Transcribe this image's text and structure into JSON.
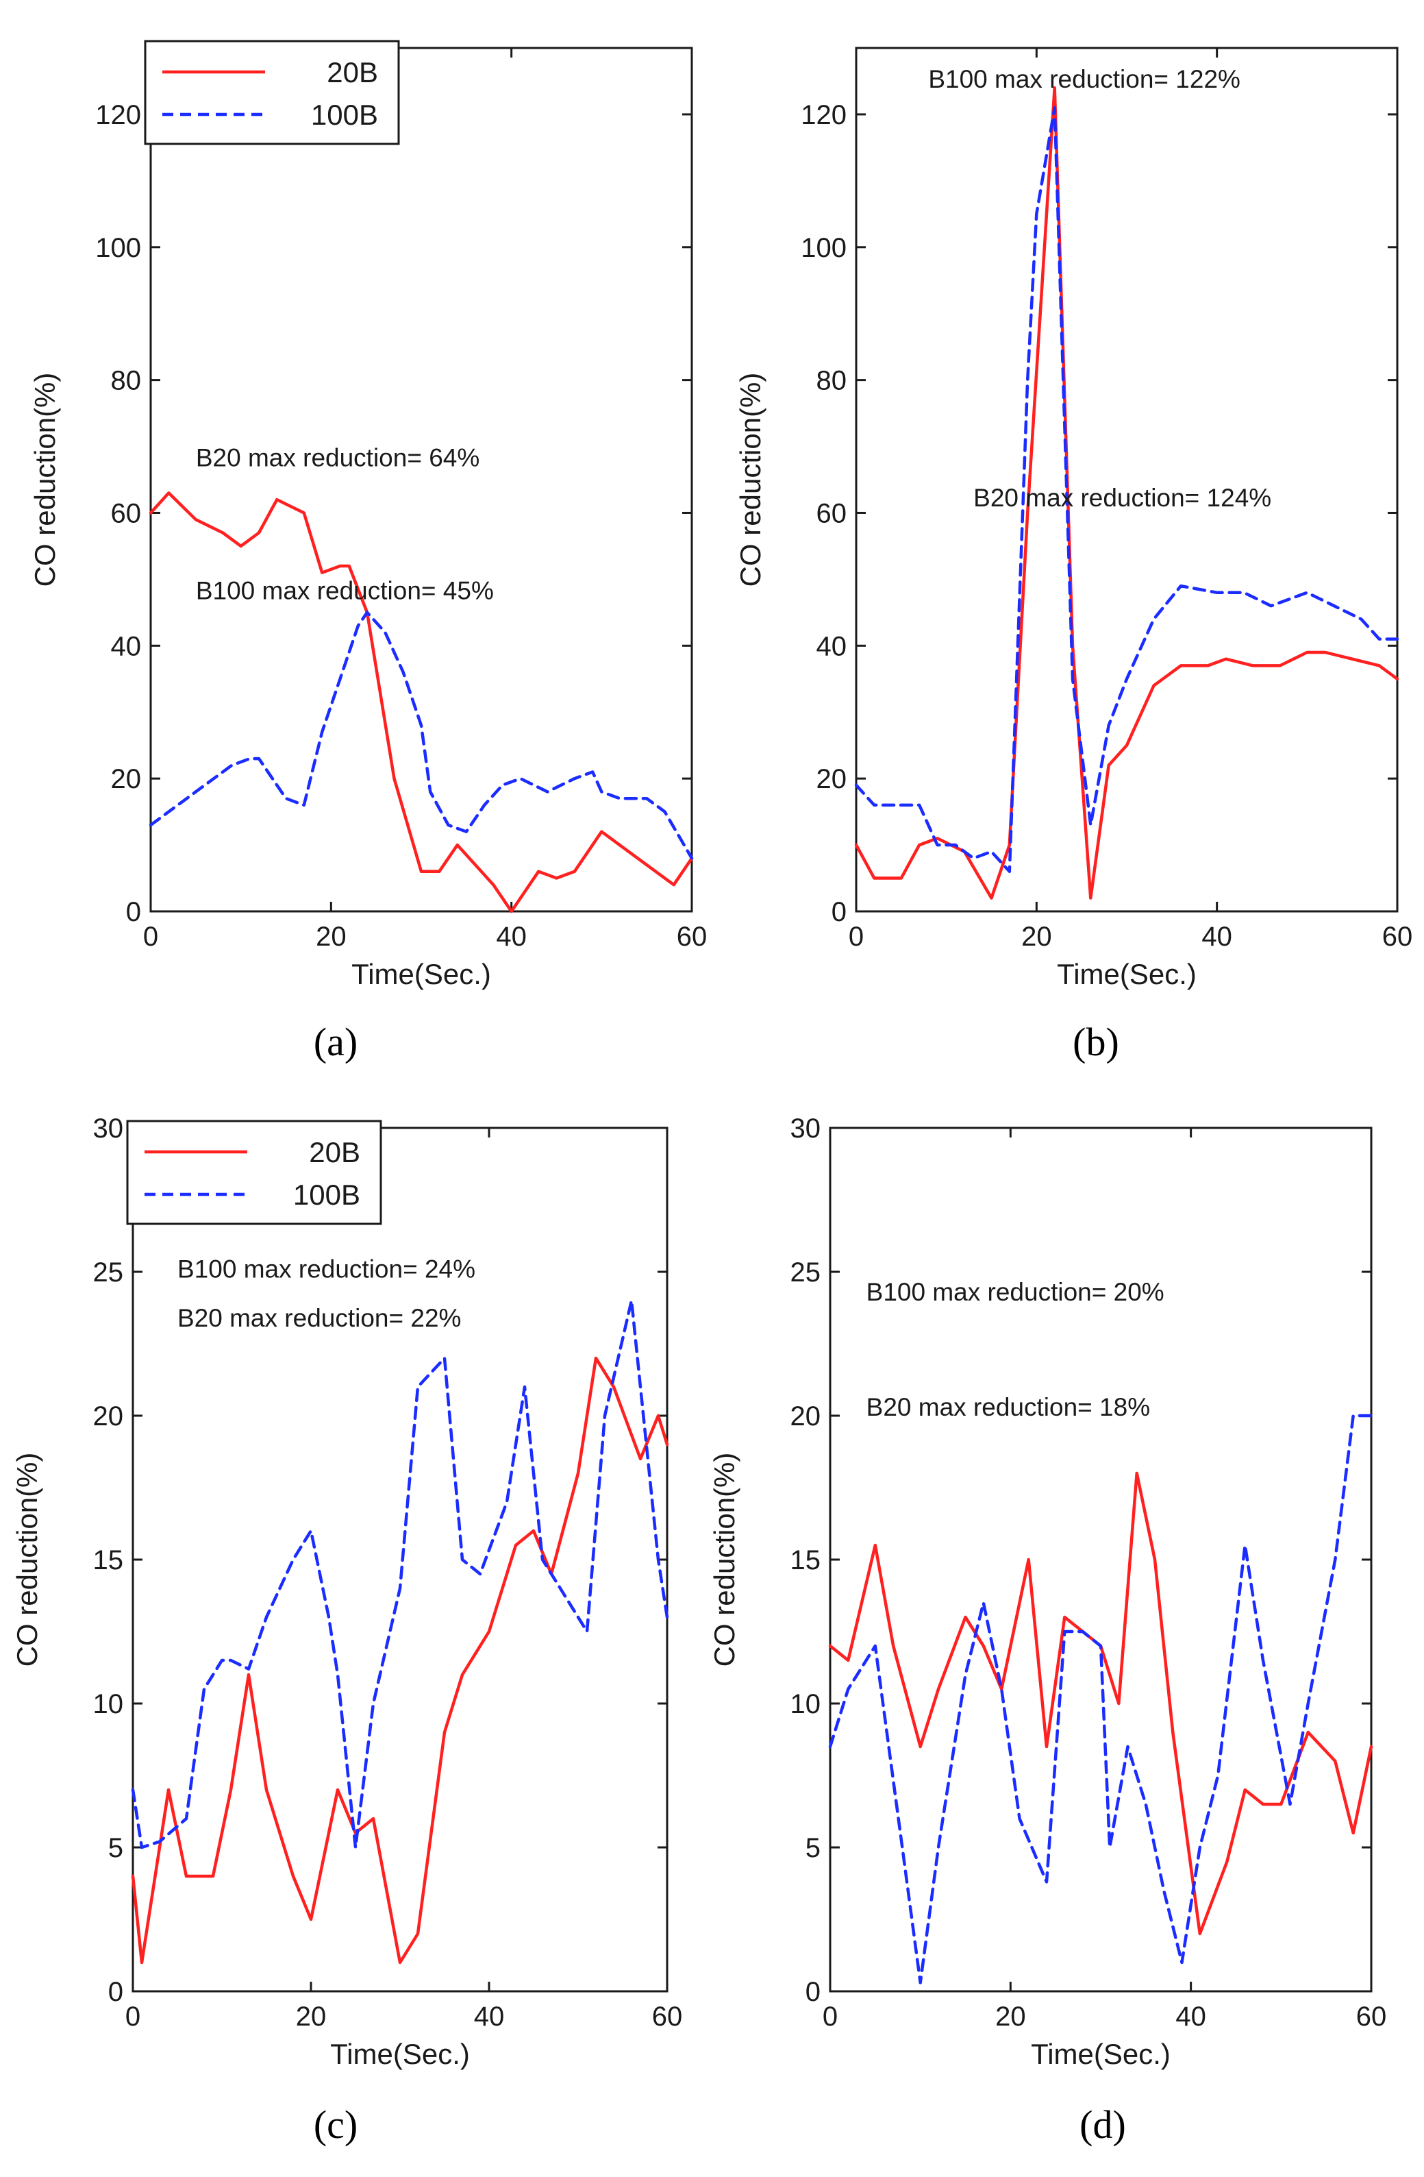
{
  "colors": {
    "20B": "#ff2020",
    "100B": "#1a2cff",
    "axis": "#1a1a1a"
  },
  "chart_data": [
    {
      "type": "line",
      "panel_label": "(a)",
      "xlabel": "Time(Sec.)",
      "ylabel": "CO reduction(%)",
      "xlim": [
        0,
        60
      ],
      "ylim": [
        0,
        130
      ],
      "xticks": [
        0,
        20,
        40,
        60
      ],
      "yticks": [
        0,
        20,
        40,
        60,
        80,
        100,
        120
      ],
      "legend": {
        "position": "top-left",
        "entries": [
          "20B",
          "100B"
        ]
      },
      "annotations": [
        {
          "text": "B20 max reduction= 64%",
          "x": 5,
          "y": 67
        },
        {
          "text": "B100 max reduction= 45%",
          "x": 5,
          "y": 47
        }
      ],
      "series": [
        {
          "name": "20B",
          "style": "solid",
          "x": [
            0,
            2,
            5,
            8,
            10,
            12,
            14,
            17,
            19,
            21,
            22,
            24,
            27,
            30,
            32,
            34,
            38,
            40,
            43,
            45,
            47,
            50,
            53,
            55,
            58,
            60
          ],
          "y": [
            60,
            63,
            59,
            57,
            55,
            57,
            62,
            60,
            51,
            52,
            52,
            45,
            20,
            6,
            6,
            10,
            4,
            0,
            6,
            5,
            6,
            12,
            9,
            7,
            4,
            8
          ]
        },
        {
          "name": "100B",
          "style": "dashed",
          "x": [
            0,
            3,
            6,
            9,
            11,
            12,
            15,
            17,
            19,
            21,
            23,
            24,
            26,
            28,
            30,
            31,
            33,
            35,
            37,
            39,
            41,
            44,
            47,
            49,
            50,
            52,
            55,
            57,
            60
          ],
          "y": [
            13,
            16,
            19,
            22,
            23,
            23,
            17,
            16,
            27,
            35,
            43,
            45,
            42,
            36,
            28,
            18,
            13,
            12,
            16,
            19,
            20,
            18,
            20,
            21,
            18,
            17,
            17,
            15,
            8
          ]
        }
      ]
    },
    {
      "type": "line",
      "panel_label": "(b)",
      "xlabel": "Time(Sec.)",
      "ylabel": "CO reduction(%)",
      "xlim": [
        0,
        60
      ],
      "ylim": [
        0,
        130
      ],
      "xticks": [
        0,
        20,
        40,
        60
      ],
      "yticks": [
        0,
        20,
        40,
        60,
        80,
        100,
        120
      ],
      "legend": null,
      "annotations": [
        {
          "text": "B100 max reduction= 122%",
          "x": 8,
          "y": 124
        },
        {
          "text": "B20 max reduction= 124%",
          "x": 13,
          "y": 61
        }
      ],
      "series": [
        {
          "name": "20B",
          "style": "solid",
          "x": [
            0,
            2,
            5,
            7,
            9,
            12,
            15,
            17,
            19,
            22,
            24,
            26,
            28,
            30,
            33,
            36,
            39,
            41,
            44,
            47,
            50,
            52,
            55,
            58,
            60
          ],
          "y": [
            10,
            5,
            5,
            10,
            11,
            9,
            2,
            10,
            60,
            124,
            40,
            2,
            22,
            25,
            34,
            37,
            37,
            38,
            37,
            37,
            39,
            39,
            38,
            37,
            35
          ]
        },
        {
          "name": "100B",
          "style": "dashed",
          "x": [
            0,
            2,
            5,
            7,
            9,
            11,
            13,
            15,
            17,
            19,
            20,
            22,
            24,
            26,
            28,
            30,
            33,
            36,
            40,
            43,
            46,
            50,
            53,
            56,
            58,
            60
          ],
          "y": [
            19,
            16,
            16,
            16,
            10,
            10,
            8,
            9,
            6,
            80,
            105,
            121,
            35,
            13,
            28,
            35,
            44,
            49,
            48,
            48,
            46,
            48,
            46,
            44,
            41,
            41
          ]
        }
      ]
    },
    {
      "type": "line",
      "panel_label": "(c)",
      "xlabel": "Time(Sec.)",
      "ylabel": "CO reduction(%)",
      "xlim": [
        0,
        60
      ],
      "ylim": [
        0,
        30
      ],
      "xticks": [
        0,
        20,
        40,
        60
      ],
      "yticks": [
        0,
        5,
        10,
        15,
        20,
        25,
        30
      ],
      "legend": {
        "position": "top-left",
        "entries": [
          "20B",
          "100B"
        ]
      },
      "annotations": [
        {
          "text": "B100 max reduction= 24%",
          "x": 5,
          "y": 24.8
        },
        {
          "text": "B20 max reduction= 22%",
          "x": 5,
          "y": 23.1
        }
      ],
      "series": [
        {
          "name": "20B",
          "style": "solid",
          "x": [
            0,
            1,
            4,
            6,
            7,
            9,
            11,
            13,
            15,
            18,
            20,
            23,
            25,
            27,
            30,
            32,
            35,
            37,
            40,
            43,
            45,
            47,
            50,
            52,
            54,
            57,
            59,
            60
          ],
          "y": [
            4,
            1,
            7,
            4,
            4,
            4,
            7,
            11,
            7,
            4,
            2.5,
            7,
            5.5,
            6,
            1,
            2,
            9,
            11,
            12.5,
            15.5,
            16,
            14.5,
            18,
            22,
            21,
            18.5,
            20,
            19
          ]
        },
        {
          "name": "100B",
          "style": "dashed",
          "x": [
            0,
            1,
            3,
            6,
            8,
            10,
            11,
            13,
            15,
            18,
            20,
            22,
            23,
            25,
            27,
            30,
            32,
            35,
            37,
            39,
            42,
            44,
            46,
            48,
            51,
            53,
            56,
            57,
            59,
            60
          ],
          "y": [
            7,
            5,
            5.2,
            6,
            10.5,
            11.5,
            11.5,
            11.2,
            13,
            15,
            16,
            13,
            11,
            5,
            10,
            14,
            21,
            22,
            15,
            14.5,
            17,
            21,
            15,
            14,
            12.5,
            20,
            24,
            21,
            15,
            13
          ]
        }
      ]
    },
    {
      "type": "line",
      "panel_label": "(d)",
      "xlabel": "Time(Sec.)",
      "ylabel": "CO reduction(%)",
      "xlim": [
        0,
        60
      ],
      "ylim": [
        0,
        30
      ],
      "xticks": [
        0,
        20,
        40,
        60
      ],
      "yticks": [
        0,
        5,
        10,
        15,
        20,
        25,
        30
      ],
      "legend": null,
      "annotations": [
        {
          "text": "B100 max reduction= 20%",
          "x": 4,
          "y": 24
        },
        {
          "text": "B20 max reduction= 18%",
          "x": 4,
          "y": 20
        }
      ],
      "series": [
        {
          "name": "20B",
          "style": "solid",
          "x": [
            0,
            2,
            5,
            7,
            10,
            12,
            15,
            17,
            19,
            22,
            24,
            26,
            28,
            30,
            32,
            34,
            36,
            38,
            41,
            44,
            46,
            48,
            50,
            53,
            56,
            58,
            60
          ],
          "y": [
            12,
            11.5,
            15.5,
            12,
            8.5,
            10.5,
            13,
            12,
            10.5,
            15,
            8.5,
            13,
            12.5,
            12,
            10,
            18,
            15,
            9,
            2,
            4.5,
            7,
            6.5,
            6.5,
            9,
            8,
            5.5,
            8.5
          ]
        },
        {
          "name": "100B",
          "style": "dashed",
          "x": [
            0,
            2,
            5,
            8,
            10,
            12,
            15,
            17,
            19,
            21,
            24,
            26,
            28,
            30,
            31,
            33,
            35,
            37,
            39,
            41,
            43,
            46,
            48,
            51,
            53,
            56,
            58,
            60
          ],
          "y": [
            8.5,
            10.5,
            12,
            5,
            0.3,
            5,
            11,
            13.5,
            10.5,
            6,
            3.8,
            12.5,
            12.5,
            12,
            5,
            8.5,
            6.5,
            3.5,
            1,
            5,
            7.5,
            15.5,
            11.5,
            6.5,
            10,
            15,
            20,
            20
          ]
        }
      ]
    }
  ]
}
